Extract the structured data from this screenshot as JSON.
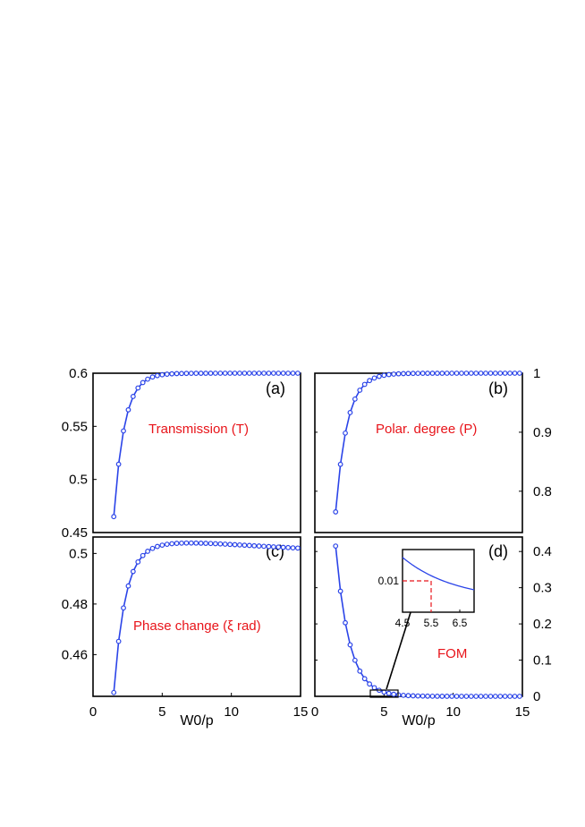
{
  "colors": {
    "series": "#2b44e8",
    "annotation": "#e8141a",
    "guide": "#e8141a",
    "axes": "#000000"
  },
  "chart_data": [
    {
      "id": "a",
      "type": "line",
      "panel_label": "(a)",
      "annotation": "Transmission (T)",
      "xlim": [
        0,
        15
      ],
      "ylim": [
        0.45,
        0.6
      ],
      "yticks": [
        {
          "v": 0.6,
          "label": "0.6"
        },
        {
          "v": 0.55,
          "label": "0.55"
        },
        {
          "v": 0.5,
          "label": "0.5"
        },
        {
          "v": 0.45,
          "label": "0.45"
        }
      ],
      "xticks": [],
      "y_axis_side": "left",
      "curve": {
        "x0": 1.5,
        "x1": 15,
        "y0": 0.465,
        "yinf": 0.6,
        "k": 1.3,
        "overshoot": 0
      },
      "marker_step": 0.35
    },
    {
      "id": "b",
      "type": "line",
      "panel_label": "(b)",
      "annotation": "Polar. degree (P)",
      "xlim": [
        0,
        15
      ],
      "ylim": [
        0.73,
        1.0
      ],
      "yticks": [
        {
          "v": 1.0,
          "label": "1"
        },
        {
          "v": 0.9,
          "label": "0.9"
        },
        {
          "v": 0.8,
          "label": "0.8"
        }
      ],
      "xticks": [],
      "y_axis_side": "right",
      "curve": {
        "x0": 1.5,
        "x1": 15,
        "y0": 0.765,
        "yinf": 1.0,
        "k": 1.2,
        "overshoot": 0
      },
      "marker_step": 0.35
    },
    {
      "id": "c",
      "type": "line",
      "panel_label": "(c)",
      "annotation": "Phase change (ξ rad)",
      "xlim": [
        0,
        15
      ],
      "ylim": [
        0.4435,
        0.5065
      ],
      "yticks": [
        {
          "v": 0.5,
          "label": "0.5"
        },
        {
          "v": 0.48,
          "label": "0.48"
        },
        {
          "v": 0.46,
          "label": "0.46"
        }
      ],
      "xticks": [
        {
          "v": 0,
          "label": "0"
        },
        {
          "v": 5,
          "label": "5"
        },
        {
          "v": 10,
          "label": "10"
        },
        {
          "v": 15,
          "label": "15"
        }
      ],
      "xlabel": "W0/p",
      "y_axis_side": "left",
      "curve": {
        "x0": 1.5,
        "x1": 15,
        "y0": 0.445,
        "yinf": 0.5,
        "k": 1.25,
        "overshoot": 0.0042,
        "overshoot_decay": 0.2
      },
      "marker_step": 0.35
    },
    {
      "id": "d",
      "type": "line",
      "panel_label": "(d)",
      "annotation": "FOM",
      "xlim": [
        0,
        15
      ],
      "ylim": [
        0,
        0.44
      ],
      "yticks": [
        {
          "v": 0.4,
          "label": "0.4"
        },
        {
          "v": 0.3,
          "label": "0.3"
        },
        {
          "v": 0.2,
          "label": "0.2"
        },
        {
          "v": 0.1,
          "label": "0.1"
        },
        {
          "v": 0,
          "label": "0"
        }
      ],
      "xticks": [
        {
          "v": 0,
          "label": "0"
        },
        {
          "v": 5,
          "label": "5"
        },
        {
          "v": 10,
          "label": "10"
        },
        {
          "v": 15,
          "label": "15"
        }
      ],
      "xlabel": "W0/p",
      "y_axis_side": "right",
      "curve": {
        "type": "decay",
        "x0": 1.5,
        "x1": 15,
        "y0": 0.415,
        "k": 1.02
      },
      "marker_step": 0.35,
      "inset": {
        "xlim": [
          4.5,
          7.0
        ],
        "ylim": [
          0.004,
          0.016
        ],
        "xticks": [
          {
            "v": 4.5,
            "label": "4.5"
          },
          {
            "v": 5.5,
            "label": "5.5"
          },
          {
            "v": 6.5,
            "label": "6.5"
          }
        ],
        "yticks": [
          {
            "v": 0.01,
            "label": "0.01"
          }
        ],
        "marked_point": {
          "x": 5.5,
          "y": 0.01
        },
        "curve": {
          "x0": 4.5,
          "x1": 7.0,
          "y0": 0.0145,
          "k": 0.55,
          "floor": 0.0062
        }
      }
    }
  ]
}
